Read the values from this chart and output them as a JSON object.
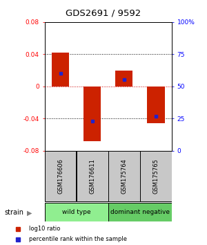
{
  "title": "GDS2691 / 9592",
  "samples": [
    "GSM176606",
    "GSM176611",
    "GSM175764",
    "GSM175765"
  ],
  "log10_ratio": [
    0.042,
    -0.068,
    0.02,
    -0.046
  ],
  "percentile_rank": [
    60,
    23,
    55,
    27
  ],
  "groups": [
    {
      "label": "wild type",
      "samples": [
        0,
        1
      ],
      "color": "#90EE90"
    },
    {
      "label": "dominant negative",
      "samples": [
        2,
        3
      ],
      "color": "#66CC66"
    }
  ],
  "ylim_left": [
    -0.08,
    0.08
  ],
  "yticks_left": [
    -0.08,
    -0.04,
    0,
    0.04,
    0.08
  ],
  "ytick_labels_right": [
    "0",
    "25",
    "50",
    "75",
    "100%"
  ],
  "bar_color": "#CC2200",
  "percentile_color": "#2222CC",
  "bar_width": 0.55,
  "zero_line_color": "#CC0000",
  "bg_color": "white",
  "sample_box_color": "#C8C8C8",
  "legend_bar_label": "log10 ratio",
  "legend_pct_label": "percentile rank within the sample"
}
